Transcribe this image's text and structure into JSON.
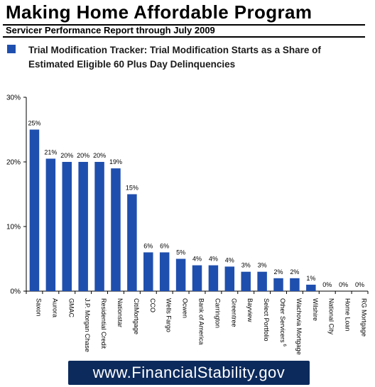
{
  "header": {
    "title": "Making Home Affordable Program",
    "subtitle": "Servicer Performance Report through July 2009"
  },
  "legend": {
    "label": "Trial Modification Tracker: Trial Modification Starts as a Share of Estimated Eligible 60 Plus Day Delinquencies",
    "color": "#1f4fae"
  },
  "chart_data": {
    "type": "bar",
    "categories": [
      "Saxon",
      "Aurora",
      "GMAC",
      "J.P. Morgan Chase",
      "Residential Credit",
      "Nationstar",
      "CitiMortgage",
      "CCO",
      "Wells Fargo",
      "Ocwen",
      "Bank of America",
      "Carrington",
      "Greentree",
      "Bayview",
      "Select Portfolio",
      "Other Servicers",
      "Wachovia Mortgage",
      "Wilshire",
      "National City",
      "Home Loan",
      "RG Mortgage"
    ],
    "category_superscripts": {
      "Other Servicers": "6"
    },
    "values": [
      25,
      20.5,
      20,
      20,
      20,
      19,
      15,
      6,
      6,
      5,
      4,
      4,
      3.8,
      3,
      3,
      2,
      2,
      1,
      0,
      0,
      0
    ],
    "data_labels": [
      "25%",
      "21%",
      "20%",
      "20%",
      "20%",
      "19%",
      "15%",
      "6%",
      "6%",
      "5%",
      "4%",
      "4%",
      "4%",
      "3%",
      "3%",
      "2%",
      "2%",
      "1%",
      "0%",
      "0%",
      "0%"
    ],
    "y_ticks": [
      "0%",
      "10%",
      "20%",
      "30%"
    ],
    "ylim": [
      0,
      30
    ],
    "grid": false,
    "bar_color": "#1f4fae"
  },
  "footer": {
    "url": "www.FinancialStability.gov"
  }
}
